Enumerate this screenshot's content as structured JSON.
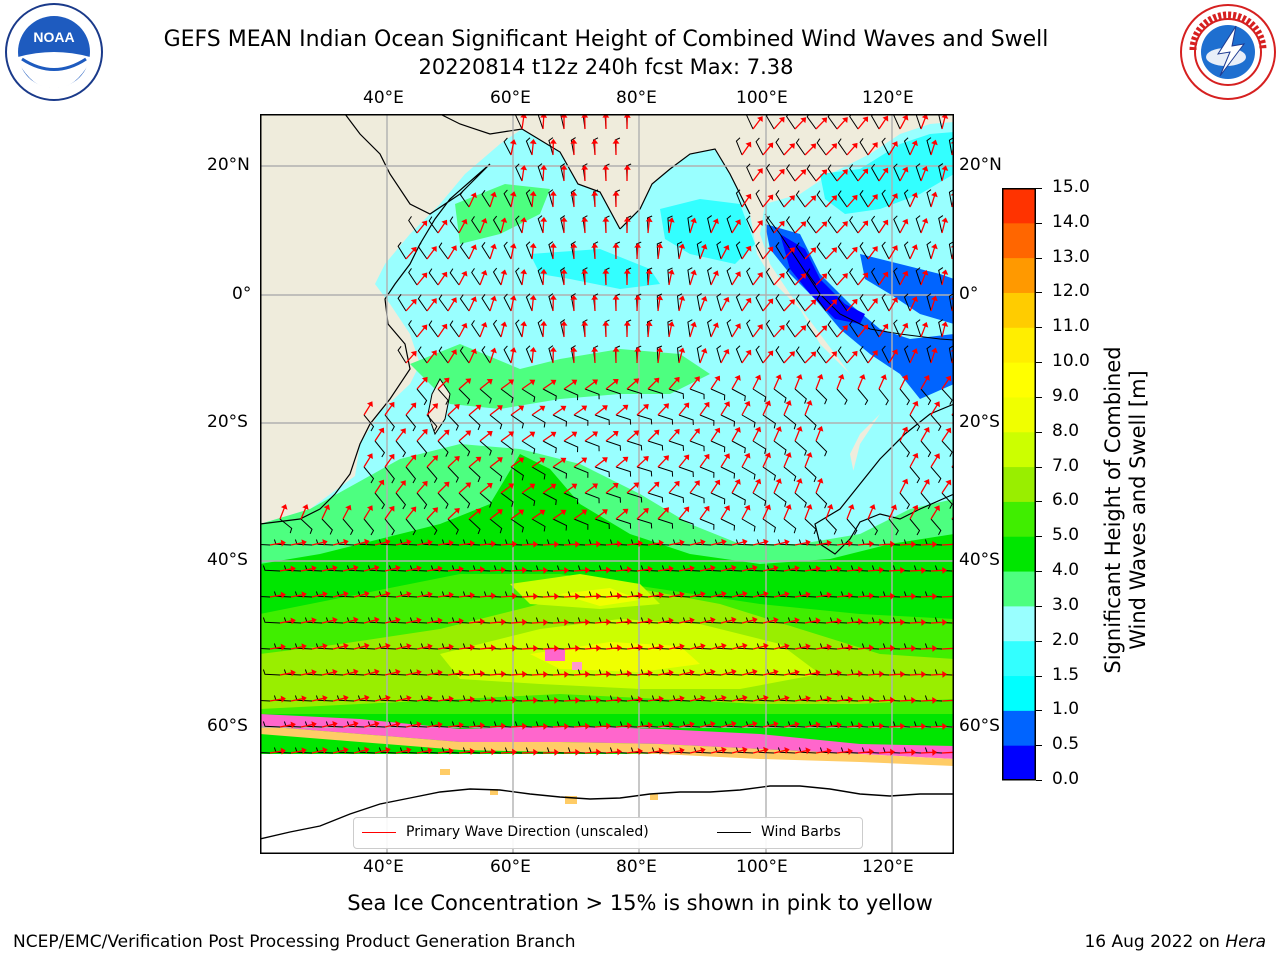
{
  "header": {
    "title_line1": "GEFS MEAN Indian Ocean Significant Height of Combined Wind Waves and Swell",
    "title_line2": "20220814 t12z 240h fcst   Max: 7.38"
  },
  "logos": {
    "noaa_text": "NOAA",
    "noaa_ring_text": "NATIONAL OCEANIC AND ATMOSPHERIC ADMINISTRATION · U.S. DEPARTMENT OF COMMERCE",
    "nws_ring_text": "NATIONAL WEATHER SERVICE"
  },
  "map": {
    "lon_labels": [
      "40°E",
      "60°E",
      "80°E",
      "100°E",
      "120°E"
    ],
    "lat_labels": [
      "20°N",
      "0°",
      "20°S",
      "40°S",
      "60°S"
    ],
    "colors": {
      "land": "#efecdc",
      "ice_free_background": "#ffffff",
      "wave_arrow": "#ff0000",
      "wind_barb": "#000000"
    },
    "legend": {
      "wave_label": "Primary Wave Direction (unscaled)",
      "wind_label": "Wind Barbs"
    }
  },
  "colorbar": {
    "label_line1": "Significant Height of Combined",
    "label_line2": "Wind Waves and Swell [m]",
    "tick_labels": [
      "0.0",
      "0.5",
      "1.0",
      "1.5",
      "2.0",
      "3.0",
      "4.0",
      "5.0",
      "6.0",
      "7.0",
      "8.0",
      "9.0",
      "10.0",
      "11.0",
      "12.0",
      "13.0",
      "14.0",
      "15.0"
    ],
    "colors": [
      "#0000ff",
      "#0064ff",
      "#00ffff",
      "#33ffff",
      "#99ffff",
      "#4dff80",
      "#00e600",
      "#40ee00",
      "#99ee00",
      "#ccff00",
      "#f0ff00",
      "#ffff00",
      "#ffee00",
      "#ffcc00",
      "#ff9900",
      "#ff6600",
      "#ff3300"
    ]
  },
  "notes": {
    "ice": "Sea Ice Concentration > 15% is shown in pink to yellow",
    "footer_left": "NCEP/EMC/Verification Post Processing Product Generation Branch",
    "footer_date": "16 Aug 2022 on ",
    "footer_host": "Hera"
  }
}
